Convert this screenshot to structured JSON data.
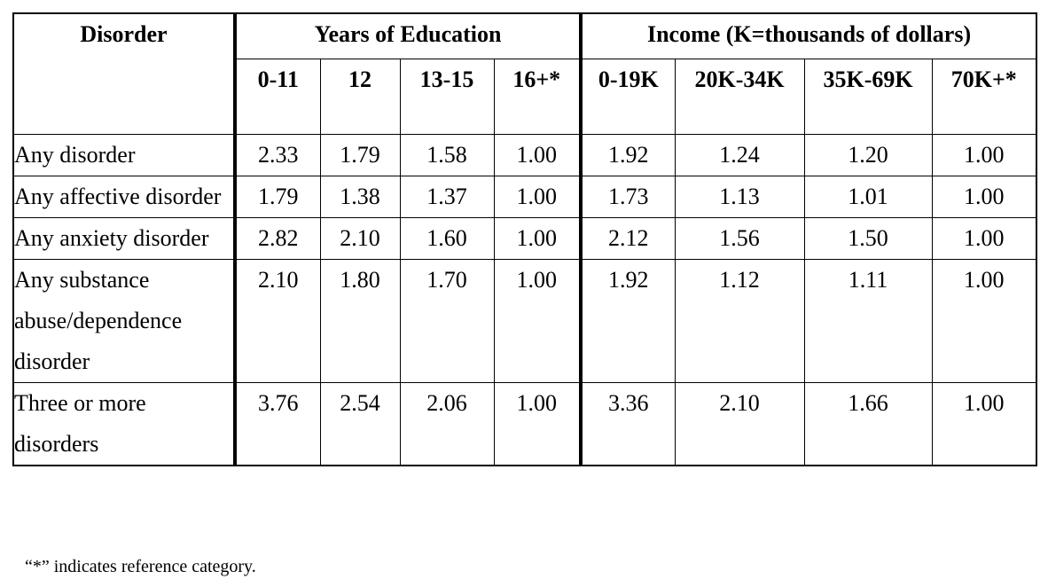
{
  "table": {
    "row_header": "Disorder",
    "groups": [
      {
        "label": "Years of Education",
        "columns": [
          "0-11",
          "12",
          "13-15",
          "16+*"
        ]
      },
      {
        "label": "Income (K=thousands of dollars)",
        "columns": [
          "0-19K",
          "20K-34K",
          "35K-69K",
          "70K+*"
        ]
      }
    ],
    "rows": [
      {
        "label": "Any disorder",
        "values": [
          "2.33",
          "1.79",
          "1.58",
          "1.00",
          "1.92",
          "1.24",
          "1.20",
          "1.00"
        ]
      },
      {
        "label": "Any affective disorder",
        "values": [
          "1.79",
          "1.38",
          "1.37",
          "1.00",
          "1.73",
          "1.13",
          "1.01",
          "1.00"
        ]
      },
      {
        "label": "Any anxiety disorder",
        "values": [
          "2.82",
          "2.10",
          "1.60",
          "1.00",
          "2.12",
          "1.56",
          "1.50",
          "1.00"
        ]
      },
      {
        "label": "Any substance abuse/dependence disorder",
        "values": [
          "2.10",
          "1.80",
          "1.70",
          "1.00",
          "1.92",
          "1.12",
          "1.11",
          "1.00"
        ]
      },
      {
        "label": "Three or more disorders",
        "values": [
          "3.76",
          "2.54",
          "2.06",
          "1.00",
          "3.36",
          "2.10",
          "1.66",
          "1.00"
        ]
      }
    ]
  },
  "footnote": "“*” indicates reference category."
}
